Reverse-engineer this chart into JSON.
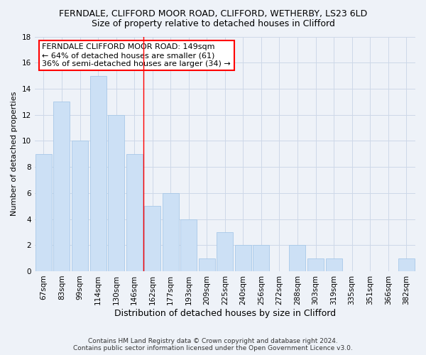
{
  "title": "FERNDALE, CLIFFORD MOOR ROAD, CLIFFORD, WETHERBY, LS23 6LD",
  "subtitle": "Size of property relative to detached houses in Clifford",
  "xlabel": "Distribution of detached houses by size in Clifford",
  "ylabel": "Number of detached properties",
  "categories": [
    "67sqm",
    "83sqm",
    "99sqm",
    "114sqm",
    "130sqm",
    "146sqm",
    "162sqm",
    "177sqm",
    "193sqm",
    "209sqm",
    "225sqm",
    "240sqm",
    "256sqm",
    "272sqm",
    "288sqm",
    "303sqm",
    "319sqm",
    "335sqm",
    "351sqm",
    "366sqm",
    "382sqm"
  ],
  "values": [
    9,
    13,
    10,
    15,
    12,
    9,
    5,
    6,
    4,
    1,
    3,
    2,
    2,
    0,
    2,
    1,
    1,
    0,
    0,
    0,
    1
  ],
  "bar_color": "#cce0f5",
  "bar_edge_color": "#a8c8e8",
  "vline_x": 5.5,
  "vline_color": "red",
  "ylim": [
    0,
    18
  ],
  "yticks": [
    0,
    2,
    4,
    6,
    8,
    10,
    12,
    14,
    16,
    18
  ],
  "annotation_title": "FERNDALE CLIFFORD MOOR ROAD: 149sqm",
  "annotation_line2": "← 64% of detached houses are smaller (61)",
  "annotation_line3": "36% of semi-detached houses are larger (34) →",
  "annotation_box_color": "white",
  "annotation_box_edge": "red",
  "footer_line1": "Contains HM Land Registry data © Crown copyright and database right 2024.",
  "footer_line2": "Contains public sector information licensed under the Open Government Licence v3.0.",
  "grid_color": "#cdd8e8",
  "background_color": "#eef2f8",
  "title_fontsize": 9,
  "subtitle_fontsize": 9,
  "ylabel_fontsize": 8,
  "xlabel_fontsize": 9,
  "tick_fontsize": 7.5,
  "footer_fontsize": 6.5,
  "ann_fontsize": 8
}
